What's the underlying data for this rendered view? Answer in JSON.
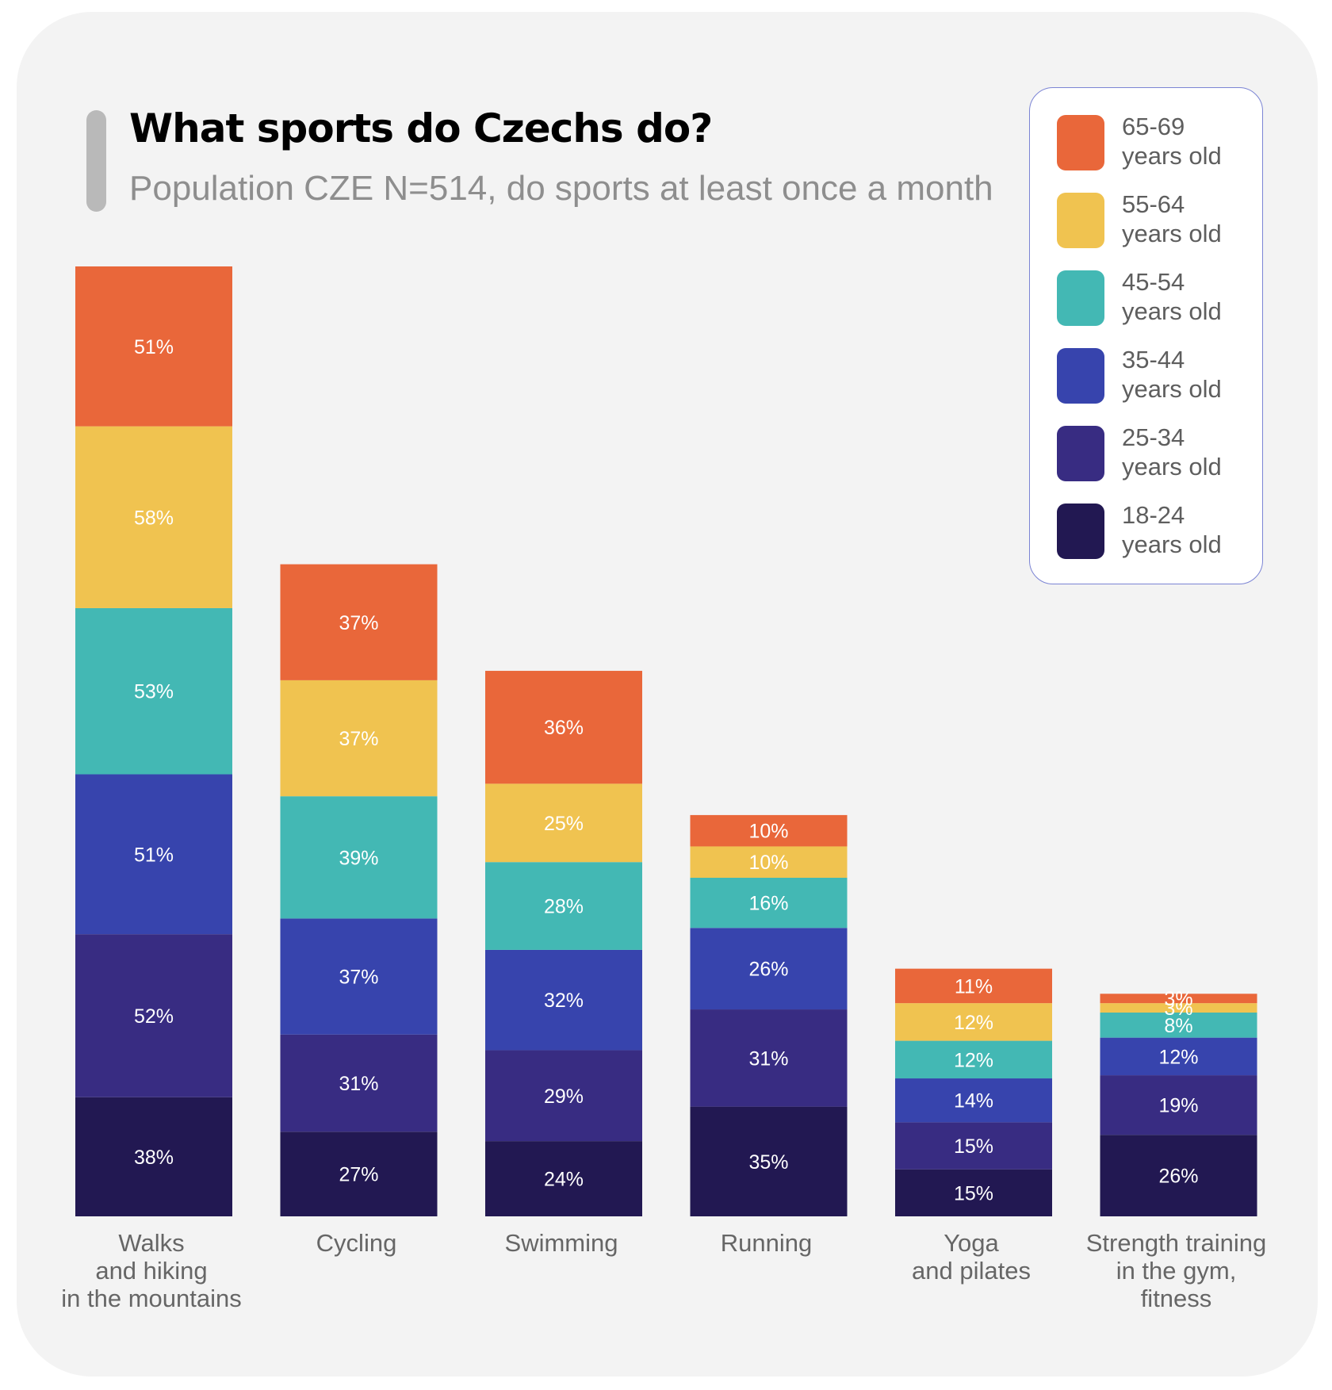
{
  "header": {
    "title": "What sports do Czechs do?",
    "subtitle": "Population CZE N=514, do sports at least once a month"
  },
  "legend": [
    {
      "range": "65-69",
      "label": "years old",
      "color": "#e9673a"
    },
    {
      "range": "55-64",
      "label": "years old",
      "color": "#f0c350"
    },
    {
      "range": "45-54",
      "label": "years old",
      "color": "#43b8b4"
    },
    {
      "range": "35-44",
      "label": "years old",
      "color": "#3744ad"
    },
    {
      "range": "25-34",
      "label": "years old",
      "color": "#382c82"
    },
    {
      "range": "18-24",
      "label": "years old",
      "color": "#221852"
    }
  ],
  "chart_data": {
    "type": "bar",
    "stacked": true,
    "title": "What sports do Czechs do?",
    "subtitle": "Population CZE N=514, do sports at least once a month",
    "categories": [
      [
        "Walks",
        "and hiking",
        "in the mountains"
      ],
      [
        "Cycling"
      ],
      [
        "Swimming"
      ],
      [
        "Running"
      ],
      [
        "Yoga",
        "and pilates"
      ],
      [
        "Strength training",
        "in the gym,",
        "fitness"
      ]
    ],
    "series": [
      {
        "name": "18-24 years old",
        "color": "#221852",
        "values": [
          38,
          27,
          24,
          35,
          15,
          26
        ]
      },
      {
        "name": "25-34 years old",
        "color": "#382c82",
        "values": [
          52,
          31,
          29,
          31,
          15,
          19
        ]
      },
      {
        "name": "35-44 years old",
        "color": "#3744ad",
        "values": [
          51,
          37,
          32,
          26,
          14,
          12
        ]
      },
      {
        "name": "45-54 years old",
        "color": "#43b8b4",
        "values": [
          53,
          39,
          28,
          16,
          12,
          8
        ]
      },
      {
        "name": "55-64 years old",
        "color": "#f0c350",
        "values": [
          58,
          37,
          25,
          10,
          12,
          3
        ]
      },
      {
        "name": "65-69 years old",
        "color": "#e9673a",
        "values": [
          51,
          37,
          36,
          10,
          11,
          3
        ]
      }
    ],
    "value_suffix": "%",
    "xlabel": "",
    "ylabel": "",
    "grid": false,
    "legend_position": "top-right"
  }
}
